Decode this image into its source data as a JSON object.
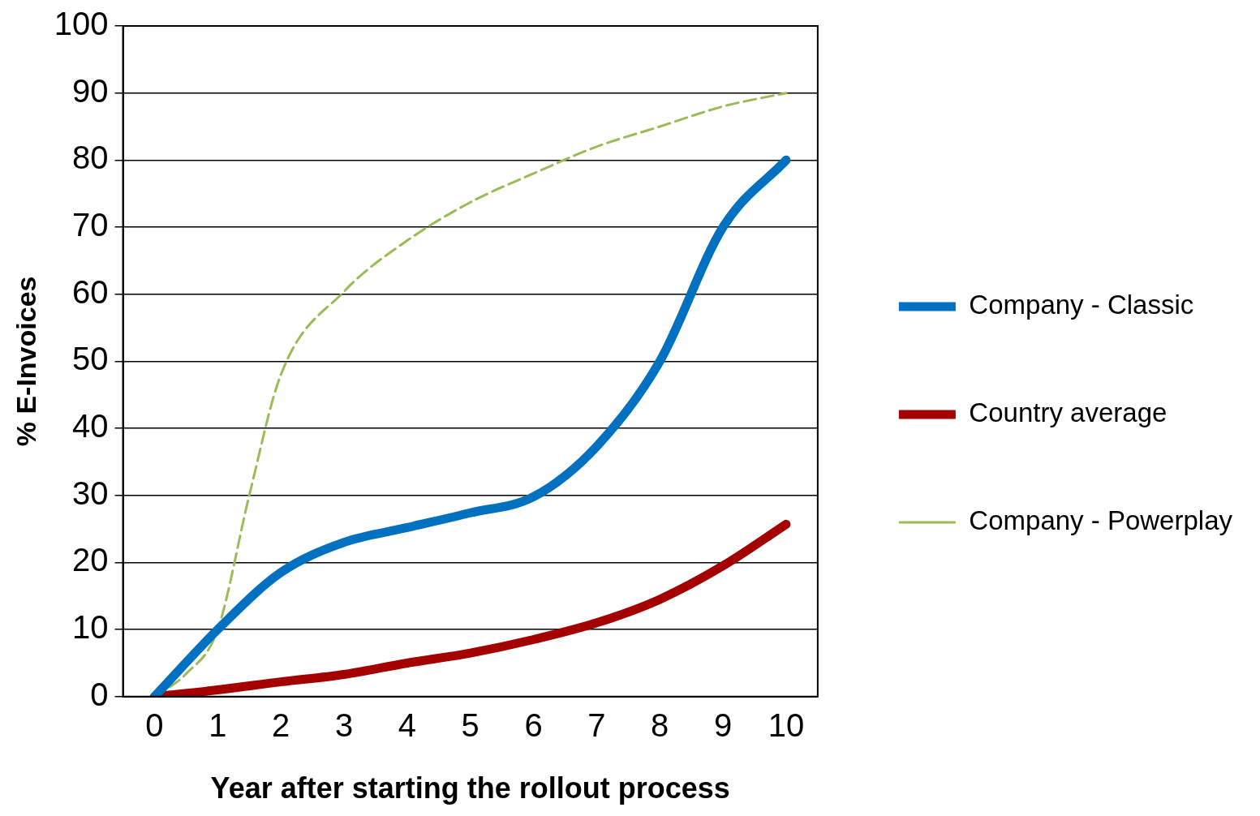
{
  "chart_data": {
    "type": "line",
    "xlabel": "Year after starting the rollout process",
    "ylabel": "% E-Invoices",
    "x": [
      0,
      1,
      2,
      3,
      4,
      5,
      6,
      7,
      8,
      9,
      10
    ],
    "series": [
      {
        "name": "Company - Classic",
        "color": "#0070c0",
        "values": [
          0,
          10,
          18.5,
          23,
          25.2,
          27.4,
          29.8,
          37.3,
          50,
          70,
          80
        ]
      },
      {
        "name": "Country average",
        "color": "#a50000",
        "values": [
          0,
          1,
          2.2,
          3.3,
          5,
          6.5,
          8.5,
          11,
          14.5,
          19.5,
          25.7
        ]
      },
      {
        "name": "Company - Powerplay",
        "color": "#9bbb59",
        "line_style": "dashed",
        "x": [
          0,
          0.5,
          1,
          1.5,
          2,
          3,
          4,
          5,
          6,
          7,
          8,
          9,
          10
        ],
        "values": [
          0,
          3.4,
          10,
          30,
          48,
          60.4,
          68,
          73.7,
          78,
          82,
          85,
          88,
          90
        ]
      }
    ],
    "xlim": [
      -0.5,
      10.5
    ],
    "xticks": [
      0,
      1,
      2,
      3,
      4,
      5,
      6,
      7,
      8,
      9,
      10
    ],
    "ylim": [
      0,
      100
    ],
    "yticks": [
      0,
      10,
      20,
      30,
      40,
      50,
      60,
      70,
      80,
      90,
      100
    ],
    "grid": "y",
    "legend": "right",
    "marker": "none"
  }
}
